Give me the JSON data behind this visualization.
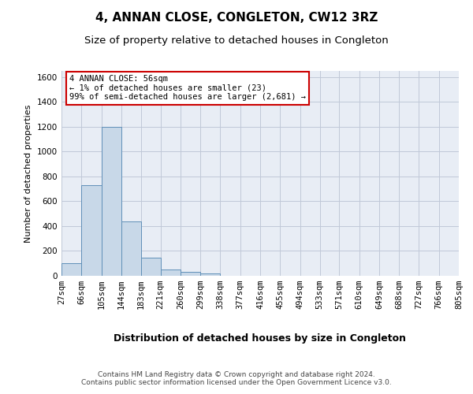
{
  "title": "4, ANNAN CLOSE, CONGLETON, CW12 3RZ",
  "subtitle": "Size of property relative to detached houses in Congleton",
  "xlabel": "Distribution of detached houses by size in Congleton",
  "ylabel": "Number of detached properties",
  "bin_edges": [
    27,
    66,
    105,
    144,
    183,
    221,
    260,
    299,
    338,
    377,
    416,
    455,
    494,
    533,
    571,
    610,
    649,
    688,
    727,
    766,
    805
  ],
  "bar_heights": [
    100,
    730,
    1200,
    435,
    145,
    50,
    30,
    20,
    0,
    0,
    0,
    0,
    0,
    0,
    0,
    0,
    0,
    0,
    0,
    0
  ],
  "bar_facecolor": "#c8d8e8",
  "bar_edgecolor": "#6090b8",
  "ylim": [
    0,
    1650
  ],
  "yticks": [
    0,
    200,
    400,
    600,
    800,
    1000,
    1200,
    1400,
    1600
  ],
  "grid_color": "#c0c8d8",
  "background_color": "#e8edf5",
  "annotation_text": "4 ANNAN CLOSE: 56sqm\n← 1% of detached houses are smaller (23)\n99% of semi-detached houses are larger (2,681) →",
  "annotation_box_color": "#ffffff",
  "annotation_box_edge": "#cc0000",
  "footnote": "Contains HM Land Registry data © Crown copyright and database right 2024.\nContains public sector information licensed under the Open Government Licence v3.0.",
  "title_fontsize": 11,
  "subtitle_fontsize": 9.5,
  "xlabel_fontsize": 9,
  "ylabel_fontsize": 8,
  "tick_fontsize": 7.5,
  "annot_fontsize": 7.5,
  "footnote_fontsize": 6.5
}
